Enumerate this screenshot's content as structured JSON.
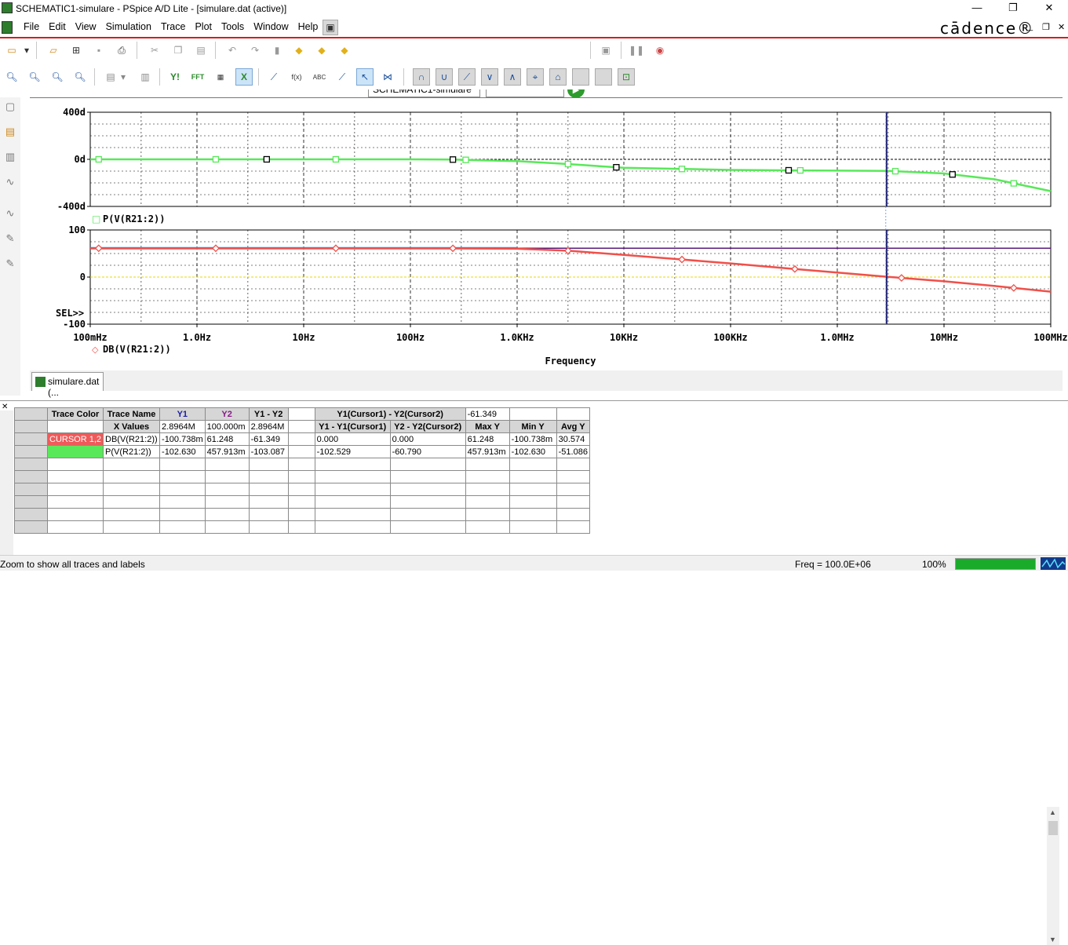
{
  "window": {
    "title": "SCHEMATIC1-simulare - PSpice A/D Lite - [simulare.dat (active)]",
    "minimize": "—",
    "maximize": "❐",
    "close": "✕"
  },
  "menu": {
    "items": [
      "File",
      "Edit",
      "View",
      "Simulation",
      "Trace",
      "Plot",
      "Tools",
      "Window",
      "Help"
    ],
    "brand": "cādence®",
    "mdi_min": "_",
    "mdi_restore": "❐",
    "mdi_close": "✕"
  },
  "toolbar": {
    "profile": "SCHEMATIC1-simulare",
    "combo_value": ""
  },
  "plot": {
    "top": {
      "y_ticks": [
        "400d",
        "0d",
        "-400d"
      ],
      "legend_marker": "□",
      "legend": "P(V(R21:2))",
      "color": "#59e85a"
    },
    "bottom": {
      "y_ticks": [
        "100",
        "0",
        "-100"
      ],
      "sel_label": "SEL>>",
      "legend_marker": "◇",
      "legend": "DB(V(R21:2))",
      "color": "#f0504a",
      "cursor1_color": "#4a8ae8",
      "cursor2_color": "#5a1a7a"
    },
    "x_ticks": [
      "100mHz",
      "1.0Hz",
      "10Hz",
      "100Hz",
      "1.0KHz",
      "10KHz",
      "100KHz",
      "1.0MHz",
      "10MHz",
      "100MHz"
    ],
    "x_title": "Frequency",
    "cursor_color": "#1a1a6a"
  },
  "chart_data": [
    {
      "type": "line",
      "xscale": "log",
      "xlim": [
        0.1,
        100000000
      ],
      "ylim": [
        -400,
        400
      ],
      "y_unit": "d",
      "series": [
        {
          "name": "P(V(R21:2))",
          "x": [
            0.1,
            1,
            10,
            100,
            250,
            1000,
            3000,
            10000,
            100000,
            1000000,
            3000000,
            10000000,
            30000000,
            100000000
          ],
          "y": [
            0,
            0,
            0,
            0,
            -2,
            -15,
            -40,
            -72,
            -90,
            -96,
            -98,
            -120,
            -170,
            -270
          ]
        }
      ],
      "grid": true
    },
    {
      "type": "line",
      "xscale": "log",
      "xlim": [
        0.1,
        100000000
      ],
      "ylim": [
        -100,
        100
      ],
      "series": [
        {
          "name": "DB(V(R21:2))",
          "x": [
            0.1,
            1,
            10,
            100,
            300,
            1000,
            3000,
            10000,
            30000,
            100000,
            300000,
            1000000,
            3000000,
            10000000,
            30000000,
            100000000
          ],
          "y": [
            61.2,
            61.2,
            61.2,
            61.2,
            61.0,
            60.2,
            56,
            47,
            38.5,
            29,
            19.5,
            9.5,
            0.5,
            -9,
            -19,
            -31
          ]
        }
      ],
      "grid": true,
      "cursors": {
        "x1": 2896400,
        "x2": 0.1
      }
    }
  ],
  "tab": {
    "label": "simulare.dat (..."
  },
  "probe_table": {
    "header": [
      "Trace Color",
      "Trace Name",
      "Y1",
      "Y2",
      "Y1 - Y2",
      "",
      "Y1(Cursor1) - Y2(Cursor2)",
      "",
      "-61.349",
      "",
      ""
    ],
    "subheader": [
      "",
      "X Values",
      "2.8964M",
      "100.000m",
      "2.8964M",
      "",
      "Y1 - Y1(Cursor1)",
      "Y2 - Y2(Cursor2)",
      "Max Y",
      "Min Y",
      "Avg Y"
    ],
    "rows": [
      [
        "CURSOR 1,2",
        "DB(V(R21:2))",
        "-100.738m",
        "61.248",
        "-61.349",
        "",
        "0.000",
        "0.000",
        "61.248",
        "-100.738m",
        "30.574"
      ],
      [
        "",
        "P(V(R21:2))",
        "-102.630",
        "457.913m",
        "-103.087",
        "",
        "-102.529",
        "-60.790",
        "457.913m",
        "-102.630",
        "-51.086"
      ]
    ]
  },
  "status": {
    "message": "Zoom to show all traces and labels",
    "freq": "Freq =   100.0E+06",
    "zoom": "100%",
    "progress": 1.0
  }
}
